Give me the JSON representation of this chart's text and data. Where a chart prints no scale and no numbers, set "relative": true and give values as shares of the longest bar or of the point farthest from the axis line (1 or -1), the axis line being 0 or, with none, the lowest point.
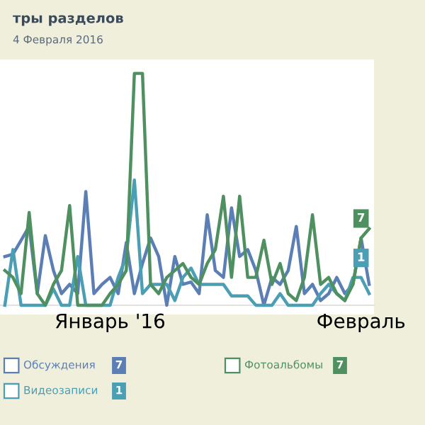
{
  "chart_data": {
    "type": "line",
    "title": "тры разделов",
    "subtitle": "4 Февраля 2016",
    "relative": true,
    "legend": "bottom",
    "marker": "none",
    "line_style": "solid",
    "categories": [
      null,
      null,
      null,
      null,
      null,
      null,
      null,
      null,
      null,
      null,
      null,
      null,
      null,
      "Январь '16",
      null,
      null,
      null,
      null,
      null,
      null,
      null,
      null,
      null,
      null,
      null,
      null,
      null,
      null,
      null,
      null,
      null,
      null,
      null,
      null,
      null,
      null,
      null,
      null,
      null,
      null,
      null,
      null,
      null,
      null,
      "Февраль",
      null
    ],
    "annotations": [
      "7",
      "1",
      "7",
      {
        "text": "7",
        "x": "Февраль",
        "y": 0.29
      },
      {
        "text": "1",
        "x": "Февраль",
        "y": 0.12
      }
    ],
    "series": [
      {
        "name": "Обсуждения",
        "color": "#5b7fb5",
        "values": [
          0.21,
          0.22,
          0.28,
          0.34,
          0.05,
          0.3,
          0.15,
          0.05,
          0.09,
          0.05,
          0.49,
          0.05,
          0.09,
          0.12,
          0.05,
          0.27,
          0.05,
          0.18,
          0.29,
          0.21,
          0,
          0.21,
          0.09,
          0.1,
          0.05,
          0.39,
          0.15,
          0.12,
          0.42,
          0.21,
          0.24,
          0.15,
          0,
          0.12,
          0.09,
          0.15,
          0.34,
          0.05,
          0.09,
          0.02,
          0.05,
          0.12,
          0.05,
          0.09,
          0.29,
          0.09
        ]
      },
      {
        "name": "Видеозаписи",
        "color": "#4a9fb5",
        "values": [
          0,
          0.24,
          0,
          0,
          0,
          0,
          0.07,
          0,
          0,
          0.21,
          0,
          0,
          0,
          0,
          0.12,
          0.21,
          0.54,
          0.05,
          0.09,
          0.09,
          0.09,
          0.02,
          0.12,
          0.16,
          0.09,
          0.09,
          0.09,
          0.09,
          0.04,
          0.04,
          0.04,
          0,
          0,
          0,
          0.05,
          0,
          0,
          0,
          0,
          0.05,
          0.09,
          0.05,
          0.02,
          0.12,
          0.12,
          0.05
        ]
      },
      {
        "name": "Фотоальбомы",
        "color": "#4f9060",
        "values": [
          0.15,
          0.12,
          0.05,
          0.4,
          0.05,
          0,
          0.09,
          0.15,
          0.43,
          0,
          0,
          0,
          0,
          0.05,
          0.09,
          0.15,
          1,
          1,
          0.09,
          0.05,
          0.12,
          0.15,
          0.18,
          0.12,
          0.09,
          0.18,
          0.24,
          0.47,
          0.12,
          0.47,
          0.12,
          0.12,
          0.28,
          0.09,
          0.18,
          0.05,
          0.02,
          0.12,
          0.39,
          0.09,
          0.12,
          0.05,
          0.02,
          0.09,
          0.29,
          0.33
        ]
      }
    ]
  }
}
